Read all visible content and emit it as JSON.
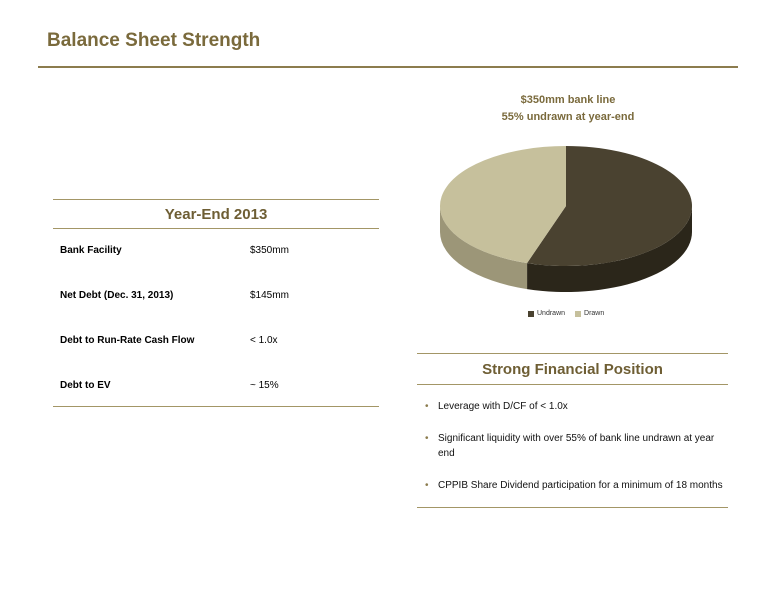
{
  "page": {
    "title": "Balance Sheet Strength"
  },
  "year_end_panel": {
    "heading": "Year-End 2013",
    "rows": [
      {
        "label": "Bank Facility",
        "value": "$350mm"
      },
      {
        "label": "Net Debt (Dec. 31, 2013)",
        "value": "$145mm"
      },
      {
        "label": "Debt to Run-Rate Cash Flow",
        "value": "< 1.0x"
      },
      {
        "label": "Debt to EV",
        "value": "~ 15%"
      }
    ]
  },
  "financial_panel": {
    "heading": "Strong Financial Position",
    "bullets": [
      "Leverage with D/CF of < 1.0x",
      "Significant liquidity with over 55% of bank line undrawn at year end",
      "CPPIB Share Dividend participation for a minimum of 18 months"
    ]
  },
  "colors": {
    "accent": "#7a6a3c",
    "undrawn": "#4a4230",
    "drawn": "#c6c09c"
  },
  "chart_data": {
    "type": "pie",
    "title": "$350mm bank line",
    "subtitle": "55% undrawn at year-end",
    "labels": [
      "Undrawn",
      "Drawn"
    ],
    "values": [
      55,
      45
    ],
    "legend_position": "bottom"
  }
}
